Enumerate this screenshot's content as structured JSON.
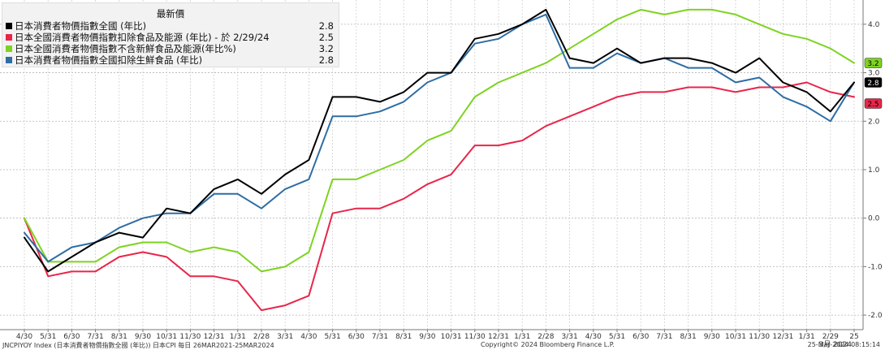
{
  "chart_data": {
    "type": "line",
    "title": "",
    "xlabel": "",
    "ylabel": "",
    "ylim": [
      -2.3,
      4.5
    ],
    "yticks": [
      -2.0,
      -1.0,
      0.0,
      1.0,
      2.0,
      3.0,
      4.0
    ],
    "yticklabels": [
      "-2.0",
      "-1.0",
      "0.0",
      "1.0",
      "2.0",
      "3.0",
      "4.0"
    ],
    "xticklabels": [
      "4/30",
      "5/31",
      "6/30",
      "7/31",
      "8/31",
      "9/30",
      "10/31",
      "11/30",
      "12/31",
      "1/31",
      "2/28",
      "3/31",
      "4/30",
      "5/31",
      "6/30",
      "7/31",
      "8/31",
      "9/30",
      "10/31",
      "11/30",
      "12/31",
      "1/31",
      "2/28",
      "3/31",
      "4/30",
      "5/31",
      "6/30",
      "7/31",
      "8/31",
      "9/30",
      "10/31",
      "11/30",
      "12/31",
      "1/31",
      "2/29",
      "25"
    ],
    "x_extra_labels": [
      "3月 2024"
    ],
    "grid": true,
    "legend_position": "top-left",
    "legend_header": "最新價",
    "series": [
      {
        "name": "日本消費者物價指數全國 (年比)",
        "color": "#000000",
        "last_value": "2.8",
        "values": [
          -0.4,
          -1.1,
          -0.8,
          -0.5,
          -0.3,
          -0.4,
          0.2,
          0.1,
          0.6,
          0.8,
          0.5,
          0.9,
          1.2,
          2.5,
          2.5,
          2.4,
          2.6,
          3.0,
          3.0,
          3.7,
          3.8,
          4.0,
          4.3,
          3.3,
          3.2,
          3.5,
          3.2,
          3.3,
          3.3,
          3.2,
          3.0,
          3.3,
          2.8,
          2.6,
          2.2,
          2.8
        ]
      },
      {
        "name": "日本全國消費者物價指數扣除食品及能源 (年比) - 於 2/29/24",
        "color": "#e8264a",
        "last_value": "2.5",
        "values": [
          0.0,
          -1.2,
          -1.1,
          -1.1,
          -0.8,
          -0.7,
          -0.8,
          -1.2,
          -1.2,
          -1.3,
          -1.9,
          -1.8,
          -1.6,
          0.1,
          0.2,
          0.2,
          0.4,
          0.7,
          0.9,
          1.5,
          1.5,
          1.6,
          1.9,
          2.1,
          2.3,
          2.5,
          2.6,
          2.6,
          2.7,
          2.7,
          2.6,
          2.7,
          2.7,
          2.8,
          2.6,
          2.5
        ]
      },
      {
        "name": "日本全國消費者物價指數不含新鮮食品及能源(年比%)",
        "color": "#7ed321",
        "last_value": "3.2",
        "values": [
          0.0,
          -0.9,
          -0.9,
          -0.9,
          -0.6,
          -0.5,
          -0.5,
          -0.7,
          -0.6,
          -0.7,
          -1.1,
          -1.0,
          -0.7,
          0.8,
          0.8,
          1.0,
          1.2,
          1.6,
          1.8,
          2.5,
          2.8,
          3.0,
          3.2,
          3.5,
          3.8,
          4.1,
          4.3,
          4.2,
          4.3,
          4.3,
          4.2,
          4.0,
          3.8,
          3.7,
          3.5,
          3.2
        ]
      },
      {
        "name": "日本消費者物價指數全國扣除生鮮食品 (年比)",
        "color": "#2e6da4",
        "last_value": "2.8",
        "values": [
          -0.3,
          -0.9,
          -0.6,
          -0.5,
          -0.2,
          0.0,
          0.1,
          0.1,
          0.5,
          0.5,
          0.2,
          0.6,
          0.8,
          2.1,
          2.1,
          2.2,
          2.4,
          2.8,
          3.0,
          3.6,
          3.7,
          4.0,
          4.2,
          3.1,
          3.1,
          3.4,
          3.2,
          3.3,
          3.1,
          3.1,
          2.8,
          2.9,
          2.5,
          2.3,
          2.0,
          2.8
        ]
      }
    ]
  },
  "footer": {
    "left": "JNCPIYOY Index (日本消費者物價指數全國 (年比)) 日本CPI  每日 26MAR2021-25MAR2024",
    "mid": "Copyright© 2024 Bloomberg Finance L.P.",
    "right": "25-Mar-2024 08:15:14"
  }
}
